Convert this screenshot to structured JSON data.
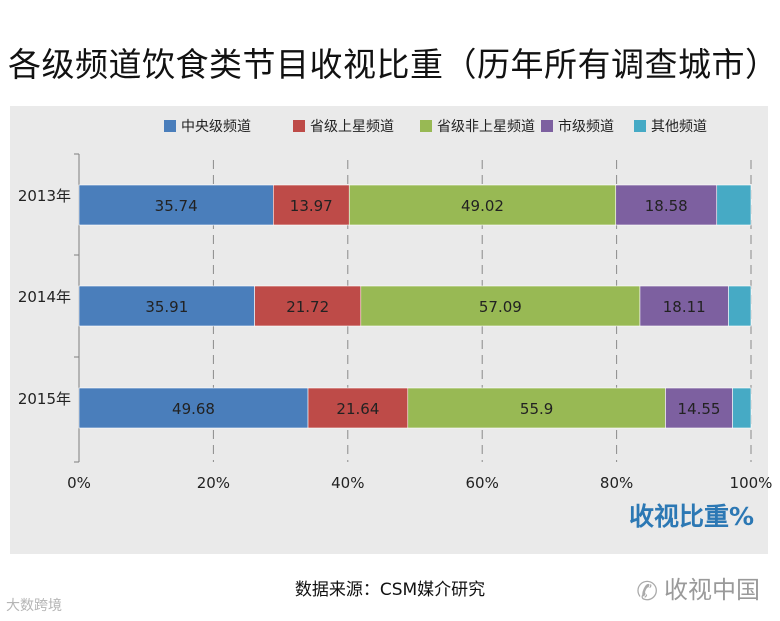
{
  "header": {
    "title": "各级频道饮食类节目收视比重（历年所有调查城市）"
  },
  "chart_data": {
    "type": "bar",
    "orientation": "horizontal",
    "stacked": true,
    "normalized_percent": true,
    "categories": [
      "2013年",
      "2014年",
      "2015年"
    ],
    "series": [
      {
        "name": "中央级频道",
        "color": "#4a7ebb",
        "values": [
          35.74,
          35.91,
          49.68
        ]
      },
      {
        "name": "省级上星频道",
        "color": "#be4b48",
        "values": [
          13.97,
          21.72,
          21.64
        ]
      },
      {
        "name": "省级非上星频道",
        "color": "#98b954",
        "values": [
          49.02,
          57.09,
          55.9
        ]
      },
      {
        "name": "市级频道",
        "color": "#7d60a0",
        "values": [
          18.58,
          18.11,
          14.55
        ]
      },
      {
        "name": "其他频道",
        "color": "#46aac5",
        "values": [
          null,
          null,
          null
        ]
      }
    ],
    "hidden_values": [
      [
        null,
        null,
        null,
        null,
        6.3
      ],
      [
        null,
        null,
        null,
        null,
        4.6
      ],
      [
        null,
        null,
        null,
        null,
        4.0
      ]
    ],
    "x_ticks": [
      "0%",
      "20%",
      "40%",
      "60%",
      "80%",
      "100%"
    ],
    "xlim": [
      0,
      100
    ],
    "grid": "vertical dashed",
    "legend_position": "top"
  },
  "axis": {
    "unit_label": "收视比重%"
  },
  "footer": {
    "source": "数据来源：CSM媒介研究",
    "watermark_right": "收视中国",
    "watermark_left": "大数跨境"
  }
}
